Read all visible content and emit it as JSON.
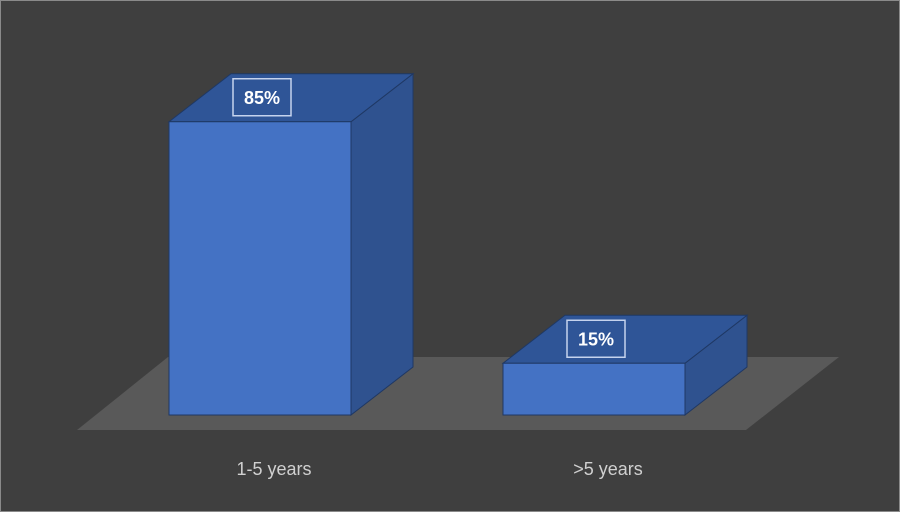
{
  "chart_data": {
    "type": "bar",
    "style": "3d-column",
    "categories": [
      "1-5 years",
      ">5 years"
    ],
    "values": [
      85,
      15
    ],
    "data_labels": [
      "85%",
      "15%"
    ],
    "ylim": [
      0,
      100
    ],
    "unit": "%",
    "title": "",
    "xlabel": "",
    "ylabel": "",
    "grid": false,
    "legend": "none"
  },
  "colors": {
    "background": "#3f3f3f",
    "floor": "#595959",
    "bar_front": "#4472c4",
    "bar_top": "#2f5597",
    "bar_side": "#2f528f",
    "bar_edge": "#1f3864",
    "label_box_border": "#c5d3ee",
    "category_text": "#d0d0d0",
    "label_text": "#ffffff"
  }
}
